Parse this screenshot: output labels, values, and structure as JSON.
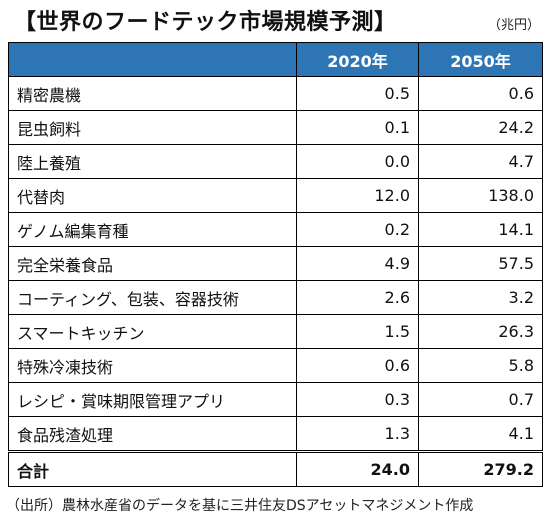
{
  "title": "【世界のフードテック市場規模予測】",
  "unit": "（兆円）",
  "table": {
    "headers": [
      "",
      "2020年",
      "2050年"
    ],
    "rows": [
      {
        "name": "精密農機",
        "v2020": "0.5",
        "v2050": "0.6"
      },
      {
        "name": "昆虫飼料",
        "v2020": "0.1",
        "v2050": "24.2"
      },
      {
        "name": "陸上養殖",
        "v2020": "0.0",
        "v2050": "4.7"
      },
      {
        "name": "代替肉",
        "v2020": "12.0",
        "v2050": "138.0"
      },
      {
        "name": "ゲノム編集育種",
        "v2020": "0.2",
        "v2050": "14.1"
      },
      {
        "name": "完全栄養食品",
        "v2020": "4.9",
        "v2050": "57.5"
      },
      {
        "name": "コーティング、包装、容器技術",
        "v2020": "2.6",
        "v2050": "3.2"
      },
      {
        "name": "スマートキッチン",
        "v2020": "1.5",
        "v2050": "26.3"
      },
      {
        "name": "特殊冷凍技術",
        "v2020": "0.6",
        "v2050": "5.8"
      },
      {
        "name": "レシピ・賞味期限管理アプリ",
        "v2020": "0.3",
        "v2050": "0.7"
      },
      {
        "name": "食品残渣処理",
        "v2020": "1.3",
        "v2050": "4.1"
      }
    ],
    "total": {
      "name": "合計",
      "v2020": "24.0",
      "v2050": "279.2"
    }
  },
  "source_note": "（出所）農林水産省のデータを基に三井住友DSアセットマネジメント作成",
  "colors": {
    "header_bg": "#2e75b6",
    "header_text": "#ffffff"
  }
}
